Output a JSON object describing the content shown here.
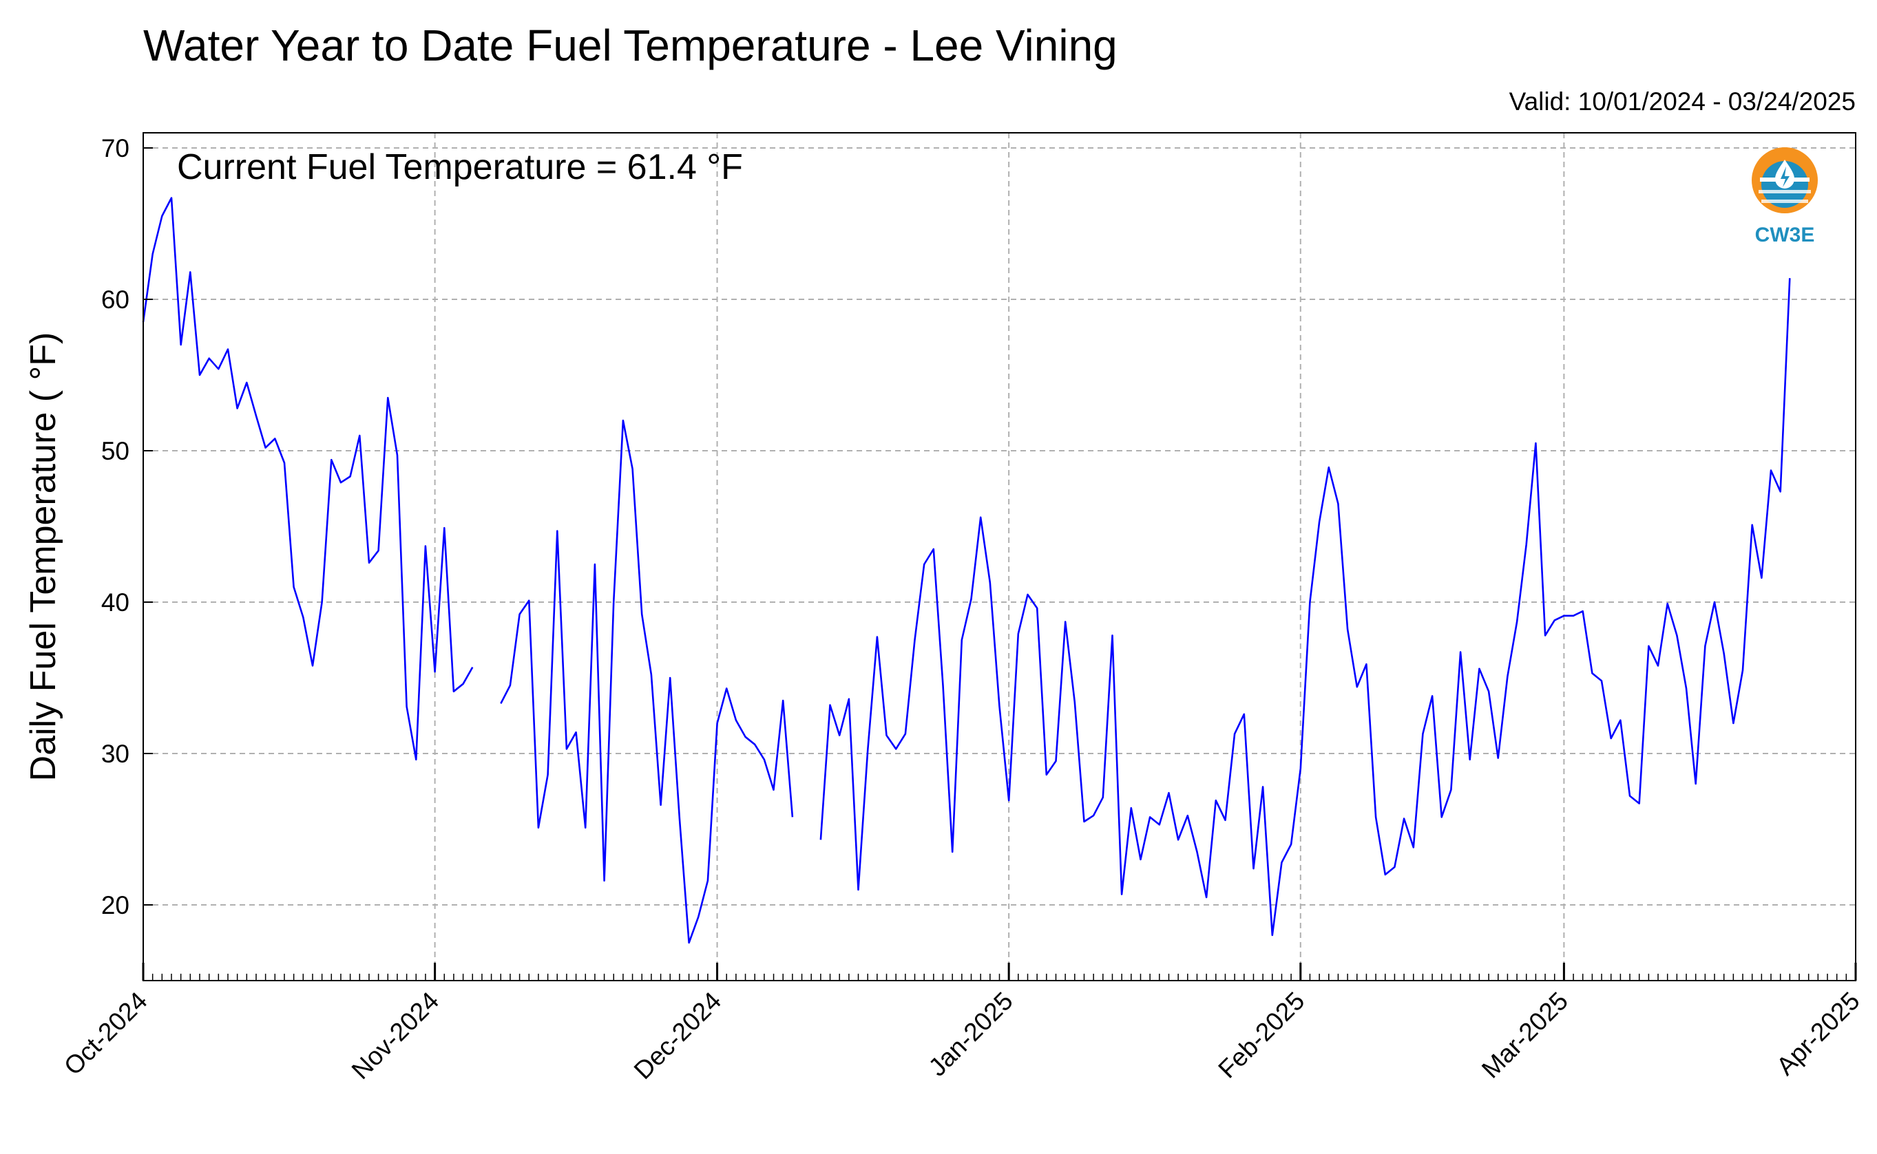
{
  "chart_data": {
    "type": "line",
    "title": "Water Year to Date Fuel Temperature - Lee Vining",
    "subtitle": "Valid: 10/01/2024 - 03/24/2025",
    "annotation": "Current Fuel Temperature = 61.4  °F",
    "ylabel": "Daily Fuel Temperature ( °F)",
    "xlabel": "",
    "ylim": [
      15,
      71
    ],
    "yticks": [
      20,
      30,
      40,
      50,
      60,
      70
    ],
    "x_start": "2024-10-01",
    "x_end": "2025-04-01",
    "x_ticks": [
      {
        "date": "2024-10-01",
        "label": "Oct-2024"
      },
      {
        "date": "2024-11-01",
        "label": "Nov-2024"
      },
      {
        "date": "2024-12-01",
        "label": "Dec-2024"
      },
      {
        "date": "2025-01-01",
        "label": "Jan-2025"
      },
      {
        "date": "2025-02-01",
        "label": "Feb-2025"
      },
      {
        "date": "2025-03-01",
        "label": "Mar-2025"
      },
      {
        "date": "2025-04-01",
        "label": "Apr-2025"
      }
    ],
    "grid": true,
    "line_color": "#0000ff",
    "series": [
      {
        "start_date": "2024-10-01",
        "values": [
          58.5,
          63,
          65.5,
          66.7,
          57,
          61.8,
          55,
          56.1,
          55.4,
          56.7,
          52.8,
          54.5,
          52.3,
          50.2,
          50.8,
          49.2,
          41,
          39,
          35.8,
          40,
          49.4,
          47.9,
          48.3,
          51,
          42.6,
          43.4,
          53.5,
          49.7,
          33.1,
          29.6,
          43.7,
          35.4,
          44.9,
          34.1,
          34.6,
          35.7,
          null,
          null,
          33.3,
          34.5,
          39.2,
          40.1,
          25.1,
          28.6,
          44.7,
          30.3,
          31.4,
          25.1,
          42.5,
          21.6,
          40,
          52,
          48.8,
          39.2,
          35.2,
          26.6,
          35,
          25.7,
          17.5,
          19.2,
          21.6,
          32,
          34.3,
          32.2,
          31.1,
          30.6,
          29.6,
          27.6,
          33.5,
          25.8,
          null,
          null,
          24.3,
          33.2,
          31.2,
          33.6,
          21,
          30.2,
          37.7,
          31.2,
          30.3,
          31.3,
          37.5,
          42.5,
          43.5,
          34.5,
          23.5,
          37.5,
          40.2,
          45.6,
          41.3,
          33.1,
          26.9,
          37.9,
          40.5,
          39.6,
          28.6,
          29.5,
          38.7,
          33.4,
          25.5,
          25.9,
          27.1,
          37.8,
          20.7,
          26.4,
          23,
          25.8,
          25.3,
          27.4,
          24.3,
          25.9,
          23.5,
          20.5,
          26.9,
          25.6,
          31.3,
          32.6,
          22.4,
          27.8,
          18,
          22.8,
          24,
          29,
          40,
          45.3,
          48.9,
          46.5,
          38.2,
          34.4,
          35.9,
          25.8,
          22,
          22.5,
          25.7,
          23.8,
          31.3,
          33.8,
          25.8,
          27.6,
          36.7,
          29.6,
          35.6,
          34.1,
          29.7,
          35.1,
          38.7,
          43.8,
          50.5,
          37.8,
          38.8,
          39.1,
          39.1,
          39.4,
          35.3,
          34.8,
          31,
          32.2,
          27.2,
          26.7,
          37.1,
          35.8,
          39.9,
          37.8,
          34.3,
          28,
          37.1,
          40,
          36.6,
          32,
          35.5,
          45.1,
          41.6,
          48.7,
          47.3,
          61.4
        ]
      }
    ]
  },
  "logo": {
    "text": "CW3E",
    "icon": "cw3e-logo-icon",
    "colors": {
      "sun": "#f5921e",
      "water": "#1f8fbf",
      "drop": "#ffffff"
    }
  }
}
